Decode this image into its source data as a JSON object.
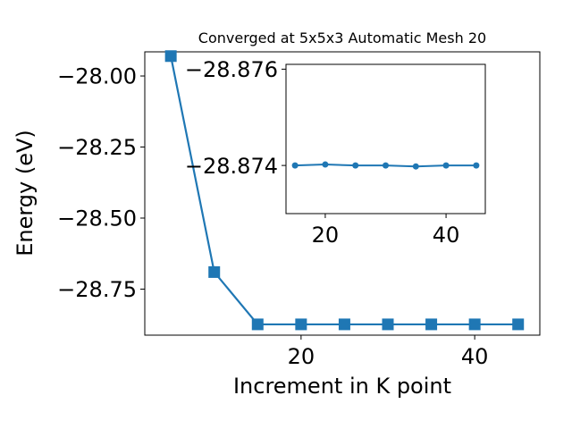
{
  "chart_data": [
    {
      "type": "line",
      "title": "Converged at 5x5x3 Automatic Mesh 20",
      "xlabel": "Increment in K point",
      "ylabel": "Energy (eV)",
      "xlim": [
        2.0,
        47.5
      ],
      "ylim": [
        -28.912,
        -27.915
      ],
      "x_ticks": [
        20,
        40
      ],
      "x_tick_labels": [
        "20",
        "40"
      ],
      "y_ticks": [
        -28.0,
        -28.25,
        -28.5,
        -28.75
      ],
      "y_tick_labels": [
        "−28.00",
        "−28.25",
        "−28.50",
        "−28.75"
      ],
      "grid": false,
      "marker": "square",
      "color": "#1f77b4",
      "series": [
        {
          "x": [
            5,
            10,
            15,
            20,
            25,
            30,
            35,
            40,
            45
          ],
          "values": [
            -27.93,
            -28.69,
            -28.874,
            -28.874,
            -28.874,
            -28.874,
            -28.874,
            -28.874,
            -28.874
          ]
        }
      ]
    },
    {
      "type": "line",
      "title": "",
      "xlabel": "",
      "ylabel": "",
      "xlim": [
        13.5,
        46.5
      ],
      "ylim": [
        -28.873,
        -28.8761
      ],
      "x_ticks": [
        20,
        40
      ],
      "x_tick_labels": [
        "20",
        "40"
      ],
      "y_ticks": [
        -28.874,
        -28.876
      ],
      "y_tick_labels": [
        "−28.874",
        "−28.876"
      ],
      "grid": false,
      "marker": "circle",
      "color": "#1f77b4",
      "series": [
        {
          "x": [
            15,
            20,
            25,
            30,
            35,
            40,
            45
          ],
          "values": [
            -28.874,
            -28.87402,
            -28.874,
            -28.874,
            -28.87398,
            -28.874,
            -28.874
          ]
        }
      ]
    }
  ]
}
